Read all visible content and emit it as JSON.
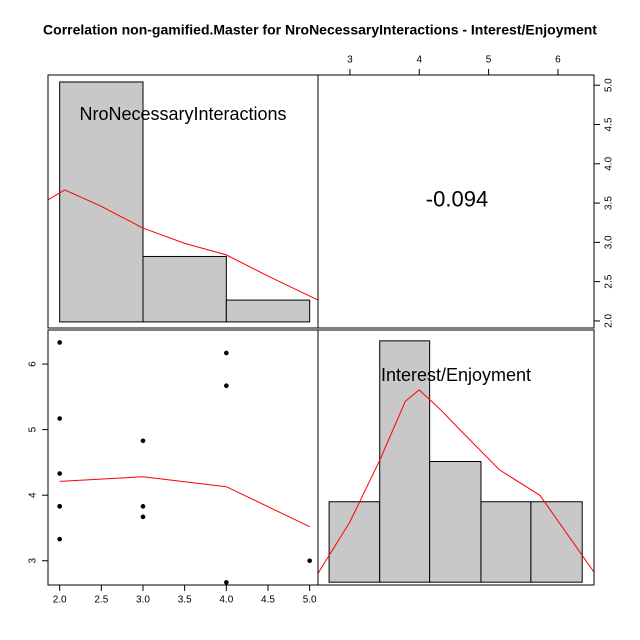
{
  "title": "Correlation non-gamified.Master for NroNecessaryInteractions - Interest/Enjoyment",
  "chart_data": [
    {
      "type": "histogram",
      "label": "NroNecessaryInteractions",
      "bins": [
        2,
        3,
        4,
        5
      ],
      "counts": [
        11,
        3,
        1
      ],
      "color": "#c8c8c8",
      "xlim": [
        1.86,
        5.1
      ],
      "ylim": [
        -0.28,
        11.32
      ],
      "density": {
        "color": "#ff0000",
        "x": [
          1.86,
          2.06,
          2.5,
          3.0,
          3.5,
          4.0,
          4.5,
          5.1
        ],
        "y": [
          5.6,
          6.05,
          5.3,
          4.3,
          3.6,
          3.07,
          2.1,
          1.0
        ]
      }
    },
    {
      "type": "correlation",
      "value": -0.094,
      "xlim": [
        2.54,
        6.52
      ],
      "ylim": [
        1.91,
        5.13
      ],
      "xticks": [
        3,
        4,
        5,
        6
      ],
      "yticks": [
        {
          "value": 2,
          "label": "2.0"
        },
        {
          "value": 2.5,
          "label": "2.5"
        },
        {
          "value": 3,
          "label": "3.0"
        },
        {
          "value": 3.5,
          "label": "3.5"
        },
        {
          "value": 4,
          "label": "4.0"
        },
        {
          "value": 4.5,
          "label": "4.5"
        },
        {
          "value": 5,
          "label": "5.0"
        }
      ]
    },
    {
      "type": "scatter",
      "color": "#000000",
      "x": [
        2,
        2,
        2,
        2,
        2,
        2,
        3,
        3,
        3,
        4,
        4,
        4,
        5
      ],
      "y": [
        6.33,
        5.17,
        4.33,
        3.83,
        3.83,
        3.33,
        4.83,
        3.83,
        3.67,
        6.17,
        5.67,
        2.67,
        3.0
      ],
      "xlim": [
        1.86,
        5.1
      ],
      "ylim": [
        2.63,
        6.52
      ],
      "xticks": [
        {
          "value": 2,
          "label": "2.0"
        },
        {
          "value": 2.5,
          "label": "2.5"
        },
        {
          "value": 3,
          "label": "3.0"
        },
        {
          "value": 3.5,
          "label": "3.5"
        },
        {
          "value": 4,
          "label": "4.0"
        },
        {
          "value": 4.5,
          "label": "4.5"
        },
        {
          "value": 5,
          "label": "5.0"
        }
      ],
      "yticks": [
        3,
        4,
        5,
        6
      ],
      "smooth": {
        "color": "#ff0000",
        "x": [
          2,
          3,
          4,
          5
        ],
        "y": [
          4.21,
          4.28,
          4.13,
          3.52
        ]
      }
    },
    {
      "type": "histogram",
      "label": "Interest/Enjoyment",
      "bins": [
        2.7,
        3.43,
        4.15,
        4.89,
        5.61,
        6.35
      ],
      "counts": [
        2,
        6,
        3,
        2,
        2
      ],
      "color": "#c8c8c8",
      "xlim": [
        2.54,
        6.52
      ],
      "ylim": [
        -0.07,
        6.27
      ],
      "density": {
        "color": "#ff0000",
        "x": [
          2.54,
          3.0,
          3.43,
          3.8,
          4.0,
          4.3,
          4.59,
          5.16,
          5.74,
          6.52
        ],
        "y": [
          0.22,
          1.5,
          3.03,
          4.5,
          4.78,
          4.3,
          3.78,
          2.79,
          2.16,
          0.25
        ]
      }
    }
  ]
}
